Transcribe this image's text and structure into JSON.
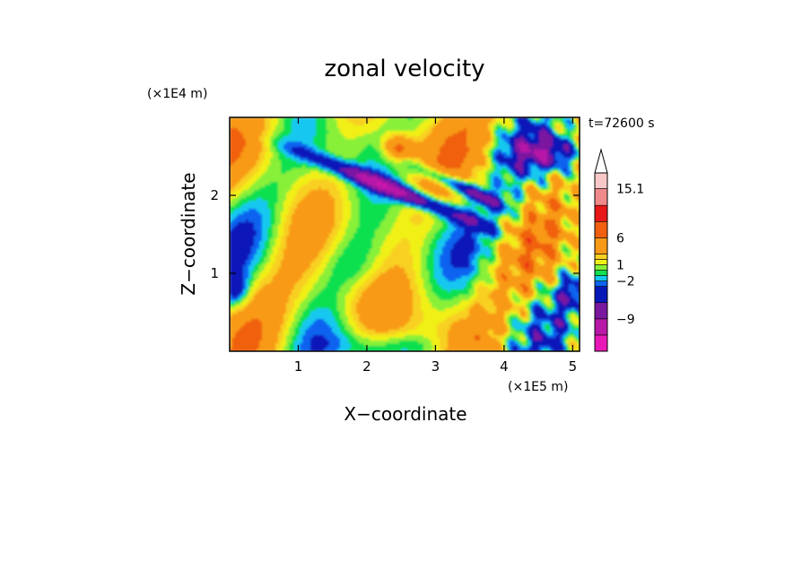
{
  "chart_data": {
    "type": "heatmap",
    "title": "zonal velocity",
    "xlabel": "X−coordinate",
    "ylabel": "Z−coordinate",
    "x_scale_label": "(×1E5 m)",
    "y_scale_label": "(×1E4 m)",
    "time_label": "t=72600 s",
    "xlim": [
      0,
      5.1
    ],
    "ylim": [
      0,
      3.0
    ],
    "x_ticks": [
      1,
      2,
      3,
      4,
      5
    ],
    "y_ticks": [
      1,
      2
    ],
    "colorbar": {
      "labels": [
        {
          "value": 15.1,
          "text": "15.1"
        },
        {
          "value": 6,
          "text": "6"
        },
        {
          "value": 1,
          "text": "1"
        },
        {
          "value": -2,
          "text": "−2"
        },
        {
          "value": -9,
          "text": "−9"
        }
      ],
      "levels": [
        {
          "from": -15,
          "to": -12,
          "color": "#e818b8"
        },
        {
          "from": -12,
          "to": -9,
          "color": "#b818a8"
        },
        {
          "from": -9,
          "to": -6,
          "color": "#7a18a0"
        },
        {
          "from": -6,
          "to": -3,
          "color": "#0818b8"
        },
        {
          "from": -3,
          "to": -2,
          "color": "#0c64f0"
        },
        {
          "from": -2,
          "to": -1,
          "color": "#14c8f0"
        },
        {
          "from": -1,
          "to": 0,
          "color": "#10e050"
        },
        {
          "from": 0,
          "to": 1,
          "color": "#88f038"
        },
        {
          "from": 1,
          "to": 2,
          "color": "#f0f018"
        },
        {
          "from": 2,
          "to": 3,
          "color": "#f8d020"
        },
        {
          "from": 3,
          "to": 6,
          "color": "#f89a18"
        },
        {
          "from": 6,
          "to": 9,
          "color": "#f06010"
        },
        {
          "from": 9,
          "to": 12,
          "color": "#e81818"
        },
        {
          "from": 12,
          "to": 15.1,
          "color": "#f08a8a"
        },
        {
          "from": 15.1,
          "to": 18,
          "color": "#f8c8c8"
        }
      ],
      "extend_max": true
    }
  }
}
